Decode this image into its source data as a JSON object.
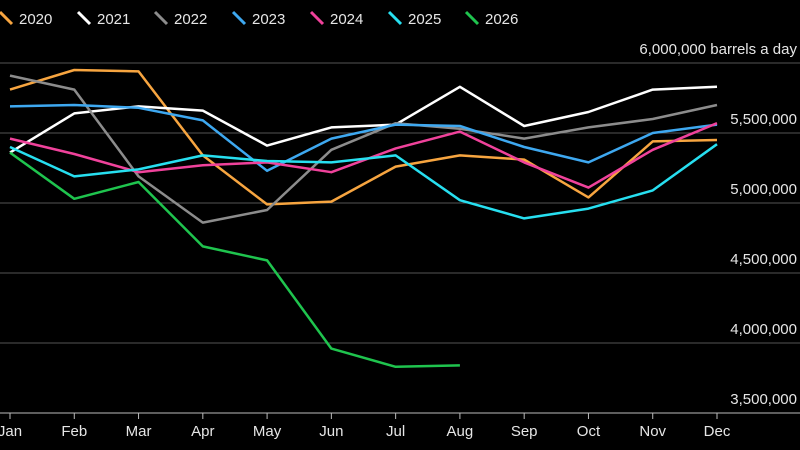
{
  "chart_data": {
    "type": "line",
    "categories": [
      "Jan",
      "Feb",
      "Mar",
      "Apr",
      "May",
      "Jun",
      "Jul",
      "Aug",
      "Sep",
      "Oct",
      "Nov",
      "Dec"
    ],
    "series": [
      {
        "name": "2020",
        "color": "#f7a540",
        "values": [
          5810000,
          5950000,
          5940000,
          5340000,
          4990000,
          5010000,
          5260000,
          5340000,
          5310000,
          5040000,
          5440000,
          5450000
        ]
      },
      {
        "name": "2021",
        "color": "#ffffff",
        "values": [
          5360000,
          5640000,
          5690000,
          5660000,
          5410000,
          5540000,
          5560000,
          5830000,
          5550000,
          5650000,
          5810000,
          5830000
        ]
      },
      {
        "name": "2022",
        "color": "#8c8c8c",
        "values": [
          5910000,
          5810000,
          5190000,
          4860000,
          4950000,
          5380000,
          5570000,
          5530000,
          5460000,
          5540000,
          5600000,
          5700000
        ]
      },
      {
        "name": "2023",
        "color": "#3ea8f0",
        "values": [
          5690000,
          5700000,
          5680000,
          5590000,
          5230000,
          5460000,
          5560000,
          5550000,
          5400000,
          5290000,
          5500000,
          5560000
        ]
      },
      {
        "name": "2024",
        "color": "#f0429b",
        "values": [
          5460000,
          5350000,
          5220000,
          5270000,
          5290000,
          5220000,
          5390000,
          5510000,
          5290000,
          5110000,
          5380000,
          5570000
        ]
      },
      {
        "name": "2025",
        "color": "#27dff0",
        "values": [
          5400000,
          5190000,
          5240000,
          5340000,
          5300000,
          5290000,
          5340000,
          5020000,
          4890000,
          4960000,
          5090000,
          5420000
        ]
      },
      {
        "name": "2026",
        "color": "#1fc44e",
        "values": [
          5360000,
          5030000,
          5150000,
          4690000,
          4590000,
          3960000,
          3830000,
          3840000,
          null,
          null,
          null,
          null
        ]
      }
    ],
    "ylim": [
      3500000,
      6000000
    ],
    "yticks": [
      {
        "value": 3500000,
        "label": "3,500,000"
      },
      {
        "value": 4000000,
        "label": "4,000,000"
      },
      {
        "value": 4500000,
        "label": "4,500,000"
      },
      {
        "value": 5000000,
        "label": "5,000,000"
      },
      {
        "value": 5500000,
        "label": "5,500,000"
      },
      {
        "value": 6000000,
        "label": "6,000,000 barrels a day"
      }
    ],
    "grid": true
  }
}
